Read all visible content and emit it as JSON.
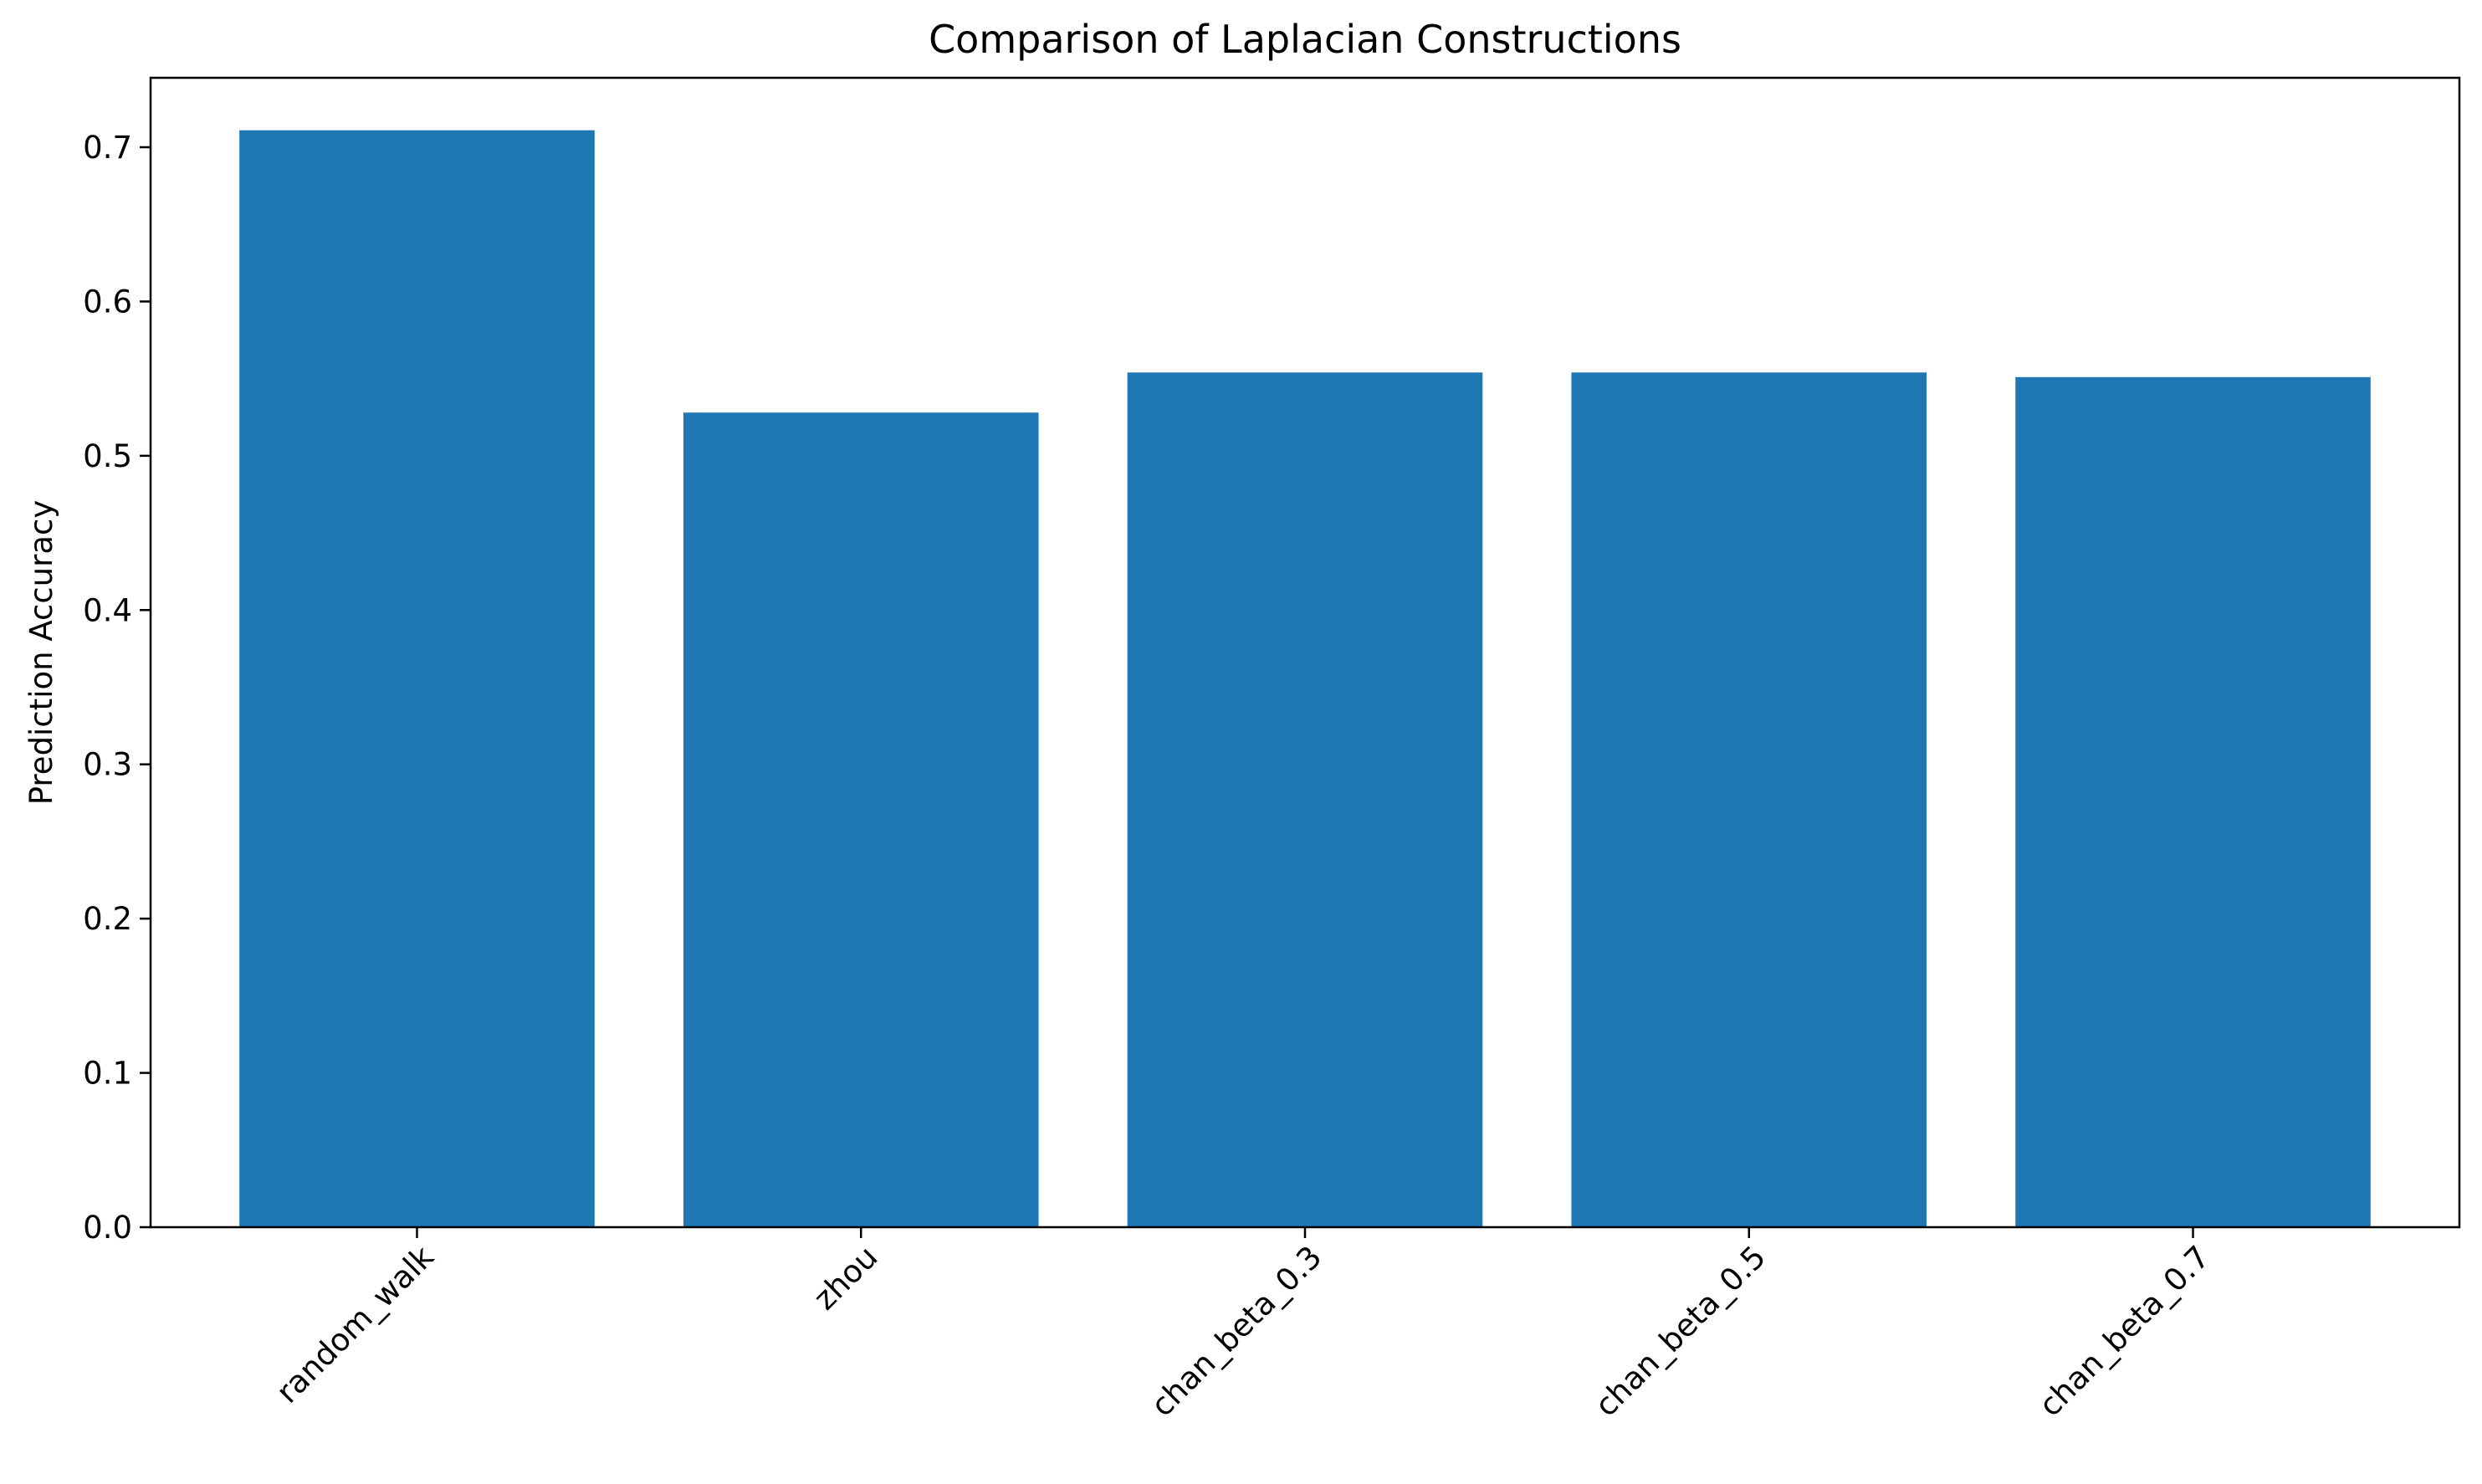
{
  "chart_data": {
    "type": "bar",
    "title": "Comparison of Laplacian Constructions",
    "xlabel": "",
    "ylabel": "Prediction Accuracy",
    "categories": [
      "random_walk",
      "zhou",
      "chan_beta_0.3",
      "chan_beta_0.5",
      "chan_beta_0.7"
    ],
    "values": [
      0.711,
      0.528,
      0.554,
      0.554,
      0.551
    ],
    "ylim": [
      0,
      0.745
    ],
    "yticks": [
      "0.0",
      "0.1",
      "0.2",
      "0.3",
      "0.4",
      "0.5",
      "0.6",
      "0.7"
    ],
    "bar_color": "#1f77b4",
    "grid": false,
    "xtick_rotation_deg": 45
  }
}
